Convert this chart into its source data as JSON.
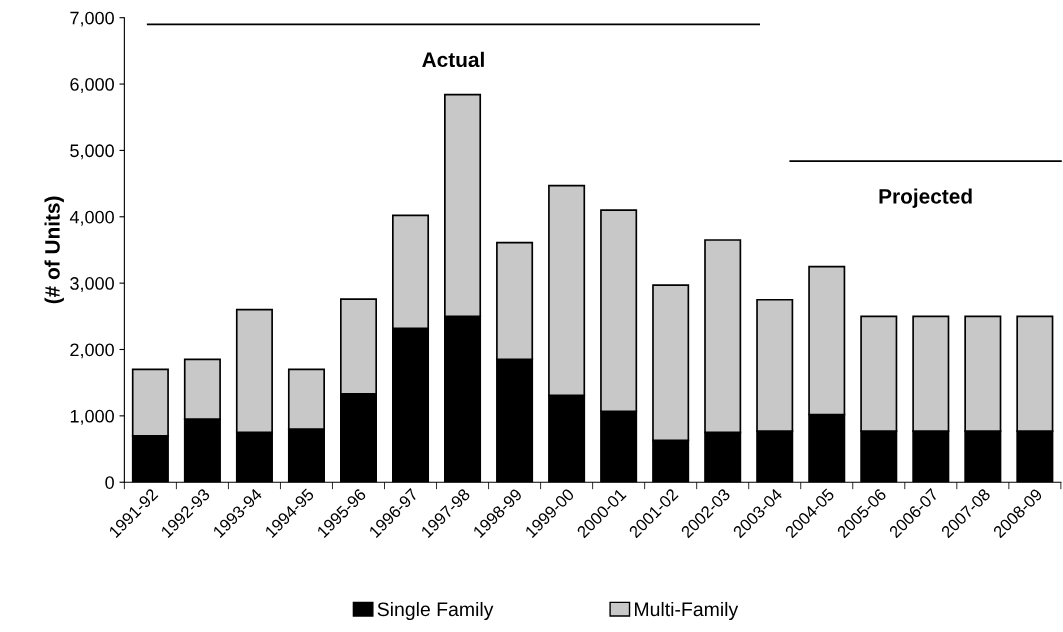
{
  "chart_data": {
    "type": "bar",
    "stacked": true,
    "ylabel": "(# of Units)",
    "categories": [
      "1991-92",
      "1992-93",
      "1993-94",
      "1994-95",
      "1995-96",
      "1996-97",
      "1997-98",
      "1998-99",
      "1999-00",
      "2000-01",
      "2001-02",
      "2002-03",
      "2003-04",
      "2004-05",
      "2005-06",
      "2006-07",
      "2007-08",
      "2008-09"
    ],
    "series": [
      {
        "name": "Single Family",
        "color": "#000000",
        "values": [
          700,
          950,
          750,
          800,
          1330,
          2320,
          2500,
          1850,
          1310,
          1070,
          630,
          750,
          770,
          1020,
          770,
          770,
          770,
          770
        ]
      },
      {
        "name": "Multi-Family",
        "color": "#c8c8c8",
        "values": [
          1000,
          900,
          1850,
          900,
          1430,
          1700,
          3340,
          1760,
          3160,
          3030,
          2340,
          2900,
          1980,
          2230,
          1730,
          1730,
          1730,
          1730
        ]
      }
    ],
    "ylim": [
      0,
      7000
    ],
    "yticks": [
      {
        "value": 0,
        "label": "0"
      },
      {
        "value": 1000,
        "label": "1,000"
      },
      {
        "value": 2000,
        "label": "2,000"
      },
      {
        "value": 3000,
        "label": "3,000"
      },
      {
        "value": 4000,
        "label": "4,000"
      },
      {
        "value": 5000,
        "label": "5,000"
      },
      {
        "value": 6000,
        "label": "6,000"
      },
      {
        "value": 7000,
        "label": "7,000"
      }
    ],
    "legend": "bottom",
    "grid": false,
    "ref_lines": [
      {
        "axis": "y",
        "value": 6900,
        "label": "Actual",
        "color": "#000000"
      },
      {
        "axis": "y",
        "value": 4840,
        "label": "Projected",
        "color": "#000000"
      }
    ]
  }
}
